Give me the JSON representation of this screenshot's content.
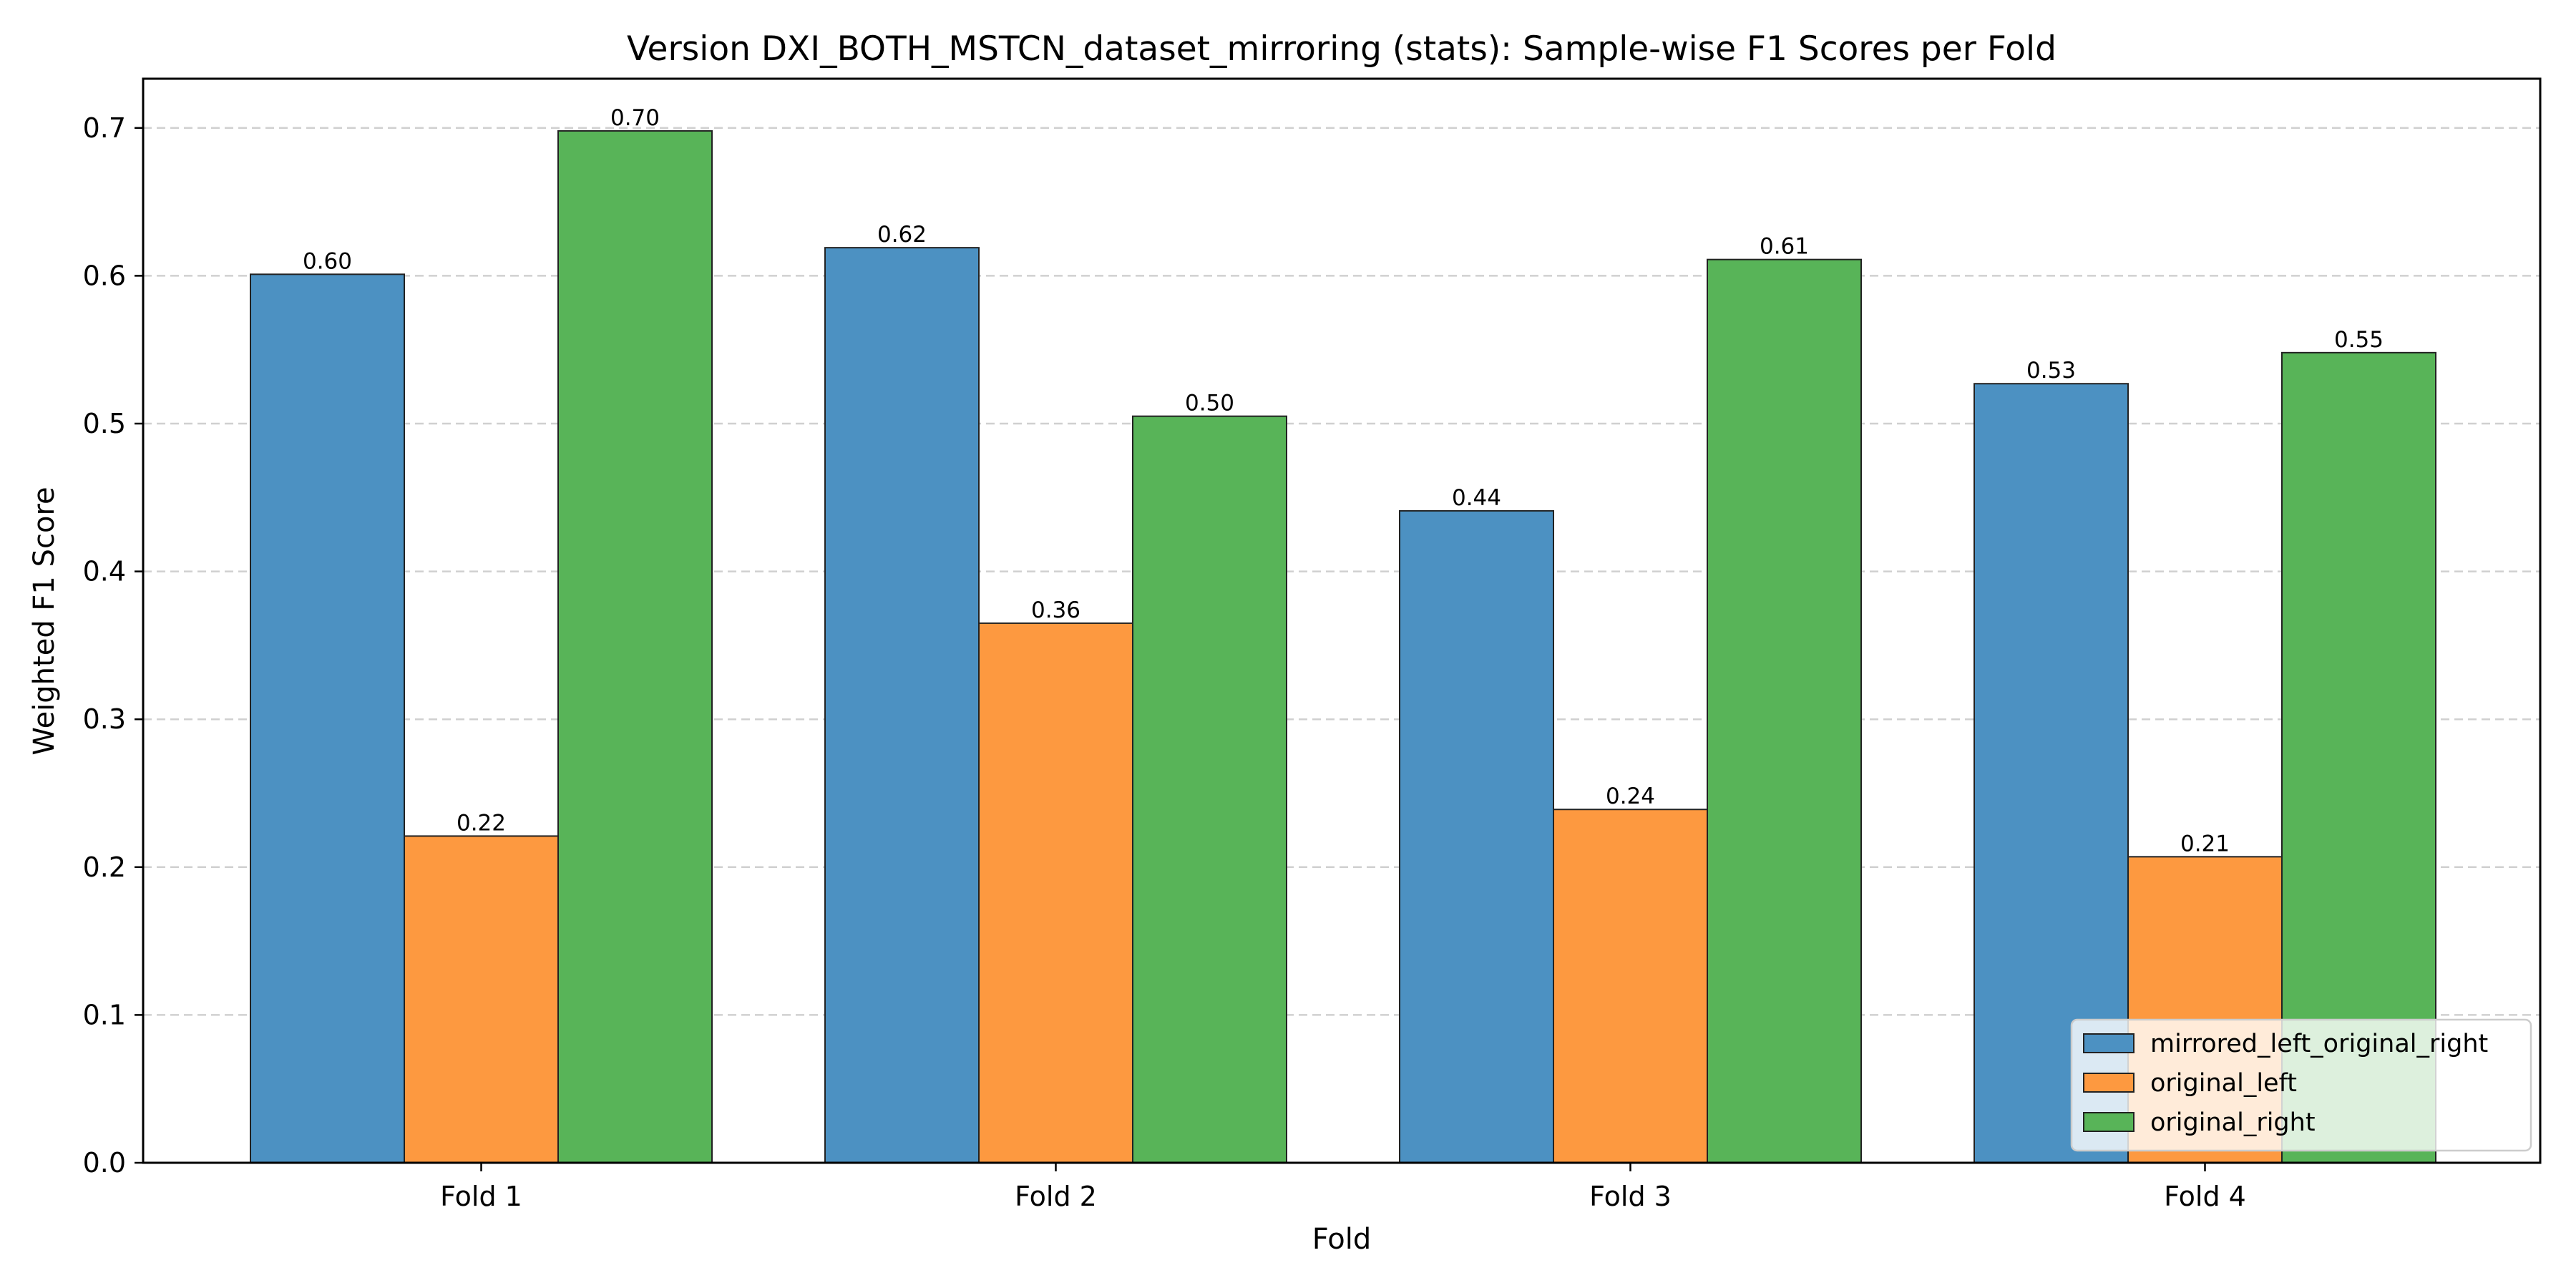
{
  "chart_data": {
    "type": "bar",
    "title": "Version DXI_BOTH_MSTCN_dataset_mirroring (stats): Sample-wise F1 Scores per Fold",
    "xlabel": "Fold",
    "ylabel": "Weighted F1 Score",
    "categories": [
      "Fold 1",
      "Fold 2",
      "Fold 3",
      "Fold 4"
    ],
    "ylim": [
      0,
      0.7333
    ],
    "yticks": [
      "0.0",
      "0.1",
      "0.2",
      "0.3",
      "0.4",
      "0.5",
      "0.6",
      "0.7"
    ],
    "grid": "y-dashed",
    "legend_position": "bottom-right",
    "series": [
      {
        "name": "mirrored_left_original_right",
        "color": "#4c91c2",
        "values": [
          0.601,
          0.619,
          0.441,
          0.527
        ],
        "labels": [
          "0.60",
          "0.62",
          "0.44",
          "0.53"
        ]
      },
      {
        "name": "original_left",
        "color": "#fd9940",
        "values": [
          0.221,
          0.365,
          0.239,
          0.207
        ],
        "labels": [
          "0.22",
          "0.36",
          "0.24",
          "0.21"
        ]
      },
      {
        "name": "original_right",
        "color": "#58b458",
        "values": [
          0.698,
          0.505,
          0.611,
          0.548
        ],
        "labels": [
          "0.70",
          "0.50",
          "0.61",
          "0.55"
        ]
      }
    ]
  }
}
